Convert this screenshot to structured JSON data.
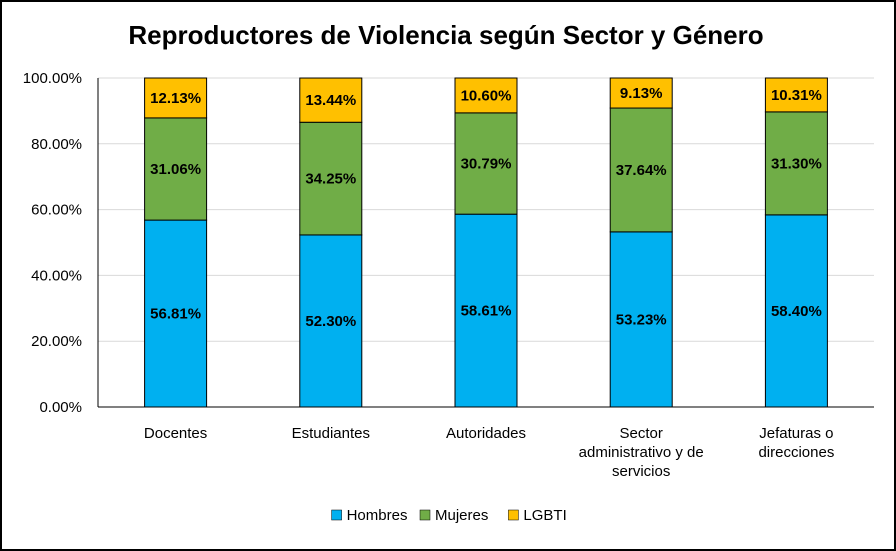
{
  "chart_data": {
    "type": "bar",
    "stacked": true,
    "title": "Reproductores de Violencia según Sector y Género",
    "categories": [
      [
        "Docentes"
      ],
      [
        "Estudiantes"
      ],
      [
        "Autoridades"
      ],
      [
        "Sector",
        "administrativo y de",
        "servicios"
      ],
      [
        "Jefaturas o",
        "direcciones"
      ]
    ],
    "series": [
      {
        "name": "Hombres",
        "color": "#00B0F0",
        "values": [
          56.81,
          52.3,
          58.61,
          53.23,
          58.4
        ],
        "labels": [
          "56.81%",
          "52.30%",
          "58.61%",
          "53.23%",
          "58.40%"
        ]
      },
      {
        "name": "Mujeres",
        "color": "#70AD47",
        "values": [
          31.06,
          34.25,
          30.79,
          37.64,
          31.3
        ],
        "labels": [
          "31.06%",
          "34.25%",
          "30.79%",
          "37.64%",
          "31.30%"
        ]
      },
      {
        "name": "LGBTI",
        "color": "#FFC000",
        "values": [
          12.13,
          13.44,
          10.6,
          9.13,
          10.31
        ],
        "labels": [
          "12.13%",
          "13.44%",
          "10.60%",
          "9.13%",
          "10.31%"
        ]
      }
    ],
    "ylim": [
      0,
      100
    ],
    "yticks": [
      "0.00%",
      "20.00%",
      "40.00%",
      "60.00%",
      "80.00%",
      "100.00%"
    ],
    "grid": true,
    "legend_position": "bottom"
  }
}
